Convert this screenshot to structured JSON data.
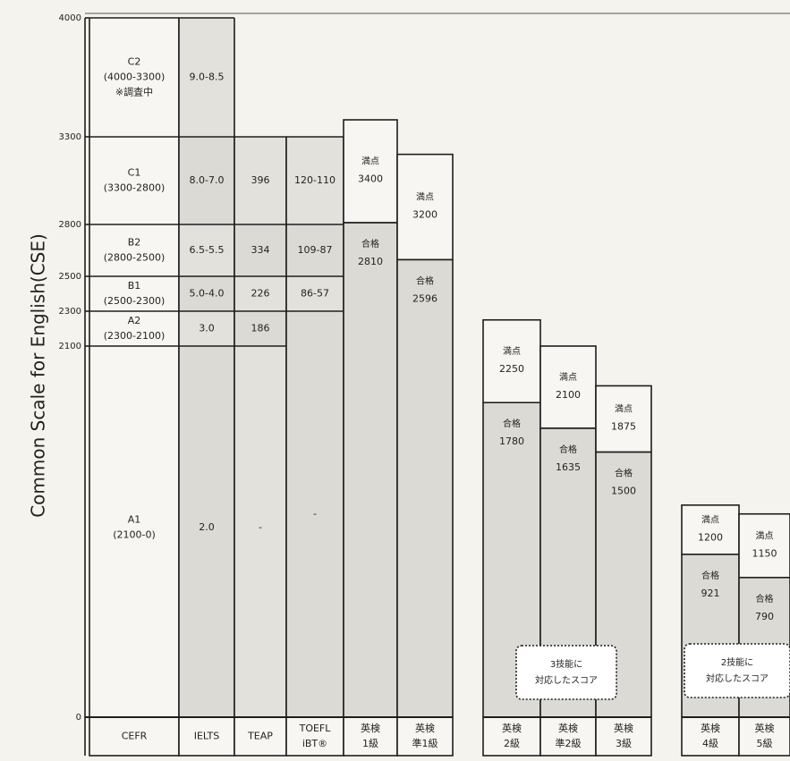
{
  "chart_data": {
    "type": "table",
    "ylabel": "Common Scale for English(CSE)",
    "ylim": [
      0,
      4000
    ],
    "y_ticks": [
      "4000",
      "3300",
      "2800",
      "2500",
      "2300",
      "2100",
      "0"
    ],
    "columns": [
      {
        "label": [
          "CEFR"
        ],
        "levels": [
          {
            "lines": [
              "C2",
              "(4000-3300)",
              "※調査中"
            ],
            "from": 3300,
            "to": 4000
          },
          {
            "lines": [
              "C1",
              "(3300-2800)"
            ],
            "from": 2800,
            "to": 3300
          },
          {
            "lines": [
              "B2",
              "(2800-2500)"
            ],
            "from": 2500,
            "to": 2800
          },
          {
            "lines": [
              "B1",
              "(2500-2300)"
            ],
            "from": 2300,
            "to": 2500
          },
          {
            "lines": [
              "A2",
              "(2300-2100)"
            ],
            "from": 2100,
            "to": 2300
          },
          {
            "lines": [
              "A1",
              "(2100-0)"
            ],
            "from": 0,
            "to": 2100
          }
        ]
      },
      {
        "label": [
          "IELTS"
        ],
        "levels": [
          {
            "lines": [
              "9.0-8.5"
            ],
            "from": 3300,
            "to": 4000
          },
          {
            "lines": [
              "8.0-7.0"
            ],
            "from": 2800,
            "to": 3300
          },
          {
            "lines": [
              "6.5-5.5"
            ],
            "from": 2500,
            "to": 2800
          },
          {
            "lines": [
              "5.0-4.0"
            ],
            "from": 2300,
            "to": 2500
          },
          {
            "lines": [
              "3.0"
            ],
            "from": 2100,
            "to": 2300
          },
          {
            "lines": [
              "2.0"
            ],
            "from": 0,
            "to": 2100
          }
        ]
      },
      {
        "label": [
          "TEAP"
        ],
        "levels": [
          {
            "lines": [
              "396"
            ],
            "from": 2800,
            "to": 3300
          },
          {
            "lines": [
              "334"
            ],
            "from": 2500,
            "to": 2800
          },
          {
            "lines": [
              "226"
            ],
            "from": 2300,
            "to": 2500
          },
          {
            "lines": [
              "186"
            ],
            "from": 2100,
            "to": 2300
          },
          {
            "lines": [
              "-"
            ],
            "from": 0,
            "to": 2100
          }
        ]
      },
      {
        "label": [
          "TOEFL",
          "iBT®"
        ],
        "levels": [
          {
            "lines": [
              "120-110"
            ],
            "from": 2800,
            "to": 3300
          },
          {
            "lines": [
              "109-87"
            ],
            "from": 2500,
            "to": 2800
          },
          {
            "lines": [
              "86-57"
            ],
            "from": 2300,
            "to": 2500
          },
          {
            "lines": [
              "-"
            ],
            "from": 0,
            "to": 2300
          }
        ]
      },
      {
        "label": [
          "英検",
          "1級"
        ],
        "max": {
          "label": "満点",
          "value": 3400
        },
        "pass": {
          "label": "合格",
          "value": 2810
        }
      },
      {
        "label": [
          "英検",
          "準1級"
        ],
        "max": {
          "label": "満点",
          "value": 3200
        },
        "pass": {
          "label": "合格",
          "value": 2596
        }
      },
      {
        "label": [
          "英検",
          "2級"
        ],
        "max": {
          "label": "満点",
          "value": 2250
        },
        "pass": {
          "label": "合格",
          "value": 1780
        }
      },
      {
        "label": [
          "英検",
          "準2級"
        ],
        "max": {
          "label": "満点",
          "value": 2100
        },
        "pass": {
          "label": "合格",
          "value": 1635
        }
      },
      {
        "label": [
          "英検",
          "3級"
        ],
        "max": {
          "label": "満点",
          "value": 1875
        },
        "pass": {
          "label": "合格",
          "value": 1500
        }
      },
      {
        "label": [
          "英検",
          "4級"
        ],
        "max": {
          "label": "満点",
          "value": 1200
        },
        "pass": {
          "label": "合格",
          "value": 921
        }
      },
      {
        "label": [
          "英検",
          "5級"
        ],
        "max": {
          "label": "満点",
          "value": 1150
        },
        "pass": {
          "label": "合格",
          "value": 790
        }
      }
    ],
    "notes": [
      {
        "lines": [
          "3技能に",
          "対応したスコア"
        ],
        "applies_to": [
          "英検 2級",
          "英検 準2級",
          "英検 3級"
        ]
      },
      {
        "lines": [
          "2技能に",
          "対応したスコア"
        ],
        "applies_to": [
          "英検 4級",
          "英検 5級"
        ]
      }
    ],
    "colors": {
      "background": "#f4f3ee",
      "shade": "#dcdad5",
      "light_cell": "#f7f6f2",
      "line": "#1e1e1e",
      "text": "#222222"
    }
  }
}
